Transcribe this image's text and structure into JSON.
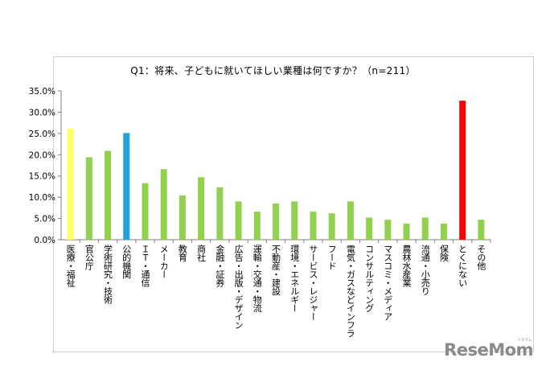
{
  "chart_data": {
    "type": "bar",
    "title": "Q1：将来、子どもに就いてほしい業種は何ですか？（n=211）",
    "xlabel": "",
    "ylabel": "",
    "ylim": [
      0,
      35
    ],
    "ytick_labels": [
      "0.0%",
      "5.0%",
      "10.0%",
      "15.0%",
      "20.0%",
      "25.0%",
      "30.0%",
      "35.0%"
    ],
    "grid": false,
    "legend": "none",
    "categories": [
      "医療・福祉",
      "官公庁",
      "学術研究・技術",
      "公的機関",
      "ＩＴ・通信",
      "メーカー",
      "教育",
      "商社",
      "金融・証券",
      "広告・出版・デザイン",
      "運輸・交通・物流",
      "不動産・建設",
      "環境・エネルギー",
      "サービス・レジャー",
      "フード",
      "電気・ガスなどインフラ",
      "コンサルティング",
      "マスコミ・メディア",
      "農林水産業",
      "流通・小売り",
      "保険",
      "とくにない",
      "その他"
    ],
    "values": [
      26.1,
      19.4,
      20.9,
      25.1,
      13.3,
      16.6,
      10.4,
      14.7,
      12.3,
      9.0,
      6.6,
      8.5,
      9.0,
      6.6,
      6.2,
      9.0,
      5.2,
      4.7,
      3.8,
      5.2,
      3.8,
      32.7,
      4.7
    ],
    "bar_colors": [
      "#ffff66",
      "#92d050",
      "#92d050",
      "#1fa3dc",
      "#92d050",
      "#92d050",
      "#92d050",
      "#92d050",
      "#92d050",
      "#92d050",
      "#92d050",
      "#92d050",
      "#92d050",
      "#92d050",
      "#92d050",
      "#92d050",
      "#92d050",
      "#92d050",
      "#92d050",
      "#92d050",
      "#92d050",
      "#ff0000",
      "#92d050"
    ]
  },
  "watermark": {
    "text": "ReseMom",
    "sub": "リセマム"
  }
}
